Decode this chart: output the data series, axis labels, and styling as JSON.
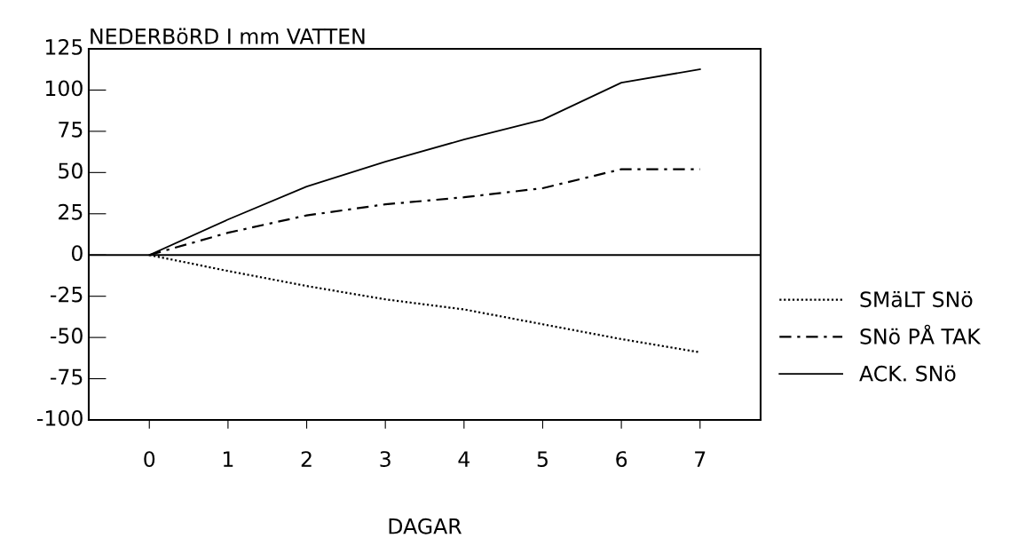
{
  "chart_data": {
    "type": "line",
    "title": "NEDERBöRD I mm VATTEN",
    "xlabel": "DAGAR",
    "x": [
      0,
      1,
      2,
      3,
      4,
      5,
      6,
      7
    ],
    "series": [
      {
        "name": "SMäLT SNö",
        "color": "#000000",
        "line_style": "dotted",
        "values": [
          0,
          -9.7,
          -18.8,
          -26.9,
          -33,
          -42,
          -51,
          -59
        ]
      },
      {
        "name": "SNö PÅ TAK",
        "color": "#000000",
        "line_style": "dashed",
        "values": [
          0,
          13.5,
          24,
          30.7,
          35,
          40.5,
          52,
          52
        ]
      },
      {
        "name": "ACK. SNö",
        "color": "#000000",
        "line_style": "solid",
        "values": [
          0,
          21.5,
          41.5,
          56.6,
          70,
          82,
          104.5,
          112.6
        ]
      }
    ],
    "xlim": [
      -0.77,
      7.77
    ],
    "xticks": [
      0,
      1,
      2,
      3,
      4,
      5,
      6,
      7
    ],
    "ylim": [
      -100,
      125
    ],
    "yticks": [
      -100,
      -75,
      -50,
      -25,
      0,
      25,
      50,
      75,
      100,
      125
    ],
    "ref_lines": [
      {
        "axis": "y",
        "value": 0,
        "color": "#000000"
      }
    ],
    "grid": false,
    "legend": "right",
    "marker": "none"
  }
}
